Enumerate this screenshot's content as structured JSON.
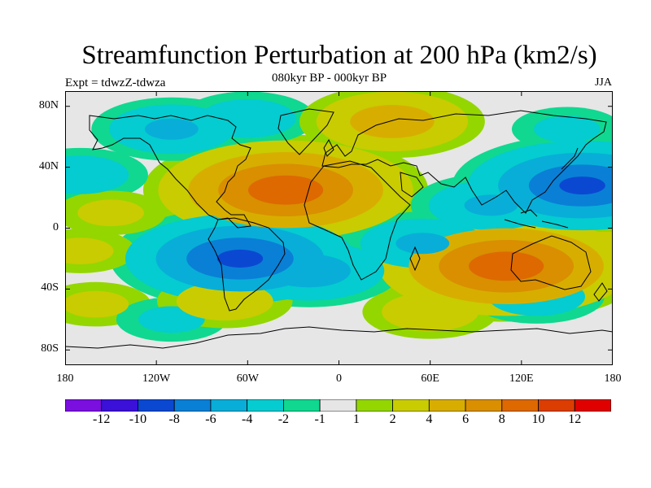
{
  "title": "Streamfunction Perturbation at 200 hPa (km2/s)",
  "subtitle": "080kyr BP - 000kyr BP",
  "experiment": "Expt = tdwzZ-tdwza",
  "season": "JJA",
  "map": {
    "projection": "cylindrical-equidistant",
    "lon_range": [
      -180,
      180
    ],
    "lat_range": [
      -90,
      90
    ],
    "fill_style": "filled-contours",
    "coastlines": true
  },
  "y_ticks": [
    {
      "label": "80N",
      "lat": 80
    },
    {
      "label": "40N",
      "lat": 40
    },
    {
      "label": "0",
      "lat": 0
    },
    {
      "label": "40S",
      "lat": -40
    },
    {
      "label": "80S",
      "lat": -80
    }
  ],
  "x_ticks": [
    {
      "label": "180",
      "lon": -180
    },
    {
      "label": "120W",
      "lon": -120
    },
    {
      "label": "60W",
      "lon": -60
    },
    {
      "label": "0",
      "lon": 0
    },
    {
      "label": "60E",
      "lon": 60
    },
    {
      "label": "120E",
      "lon": 120
    },
    {
      "label": "180",
      "lon": 180
    }
  ],
  "colorbar": {
    "colors": [
      "#7a0fe0",
      "#3b10d8",
      "#0a48d2",
      "#0a7fd6",
      "#08aed8",
      "#04ccd0",
      "#10d890",
      "#e6e6e6",
      "#94d600",
      "#c9cc00",
      "#d7ae00",
      "#d98f00",
      "#dd6900",
      "#dc3d00",
      "#e00000"
    ],
    "labels": [
      "-12",
      "-10",
      "-8",
      "-6",
      "-4",
      "-2",
      "-1",
      "1",
      "2",
      "4",
      "6",
      "8",
      "10",
      "12"
    ]
  },
  "chart_data": {
    "type": "heatmap",
    "variable": "Streamfunction Perturbation at 200 hPa",
    "units": "km2/s",
    "levels": [
      -12,
      -10,
      -8,
      -6,
      -4,
      -2,
      -1,
      1,
      2,
      4,
      6,
      8,
      10,
      12
    ],
    "centers": [
      {
        "lon": -35,
        "lat": 25,
        "value": 9
      },
      {
        "lon": 110,
        "lat": -25,
        "value": 9
      },
      {
        "lon": 160,
        "lat": 28,
        "value": -8
      },
      {
        "lon": -65,
        "lat": -20,
        "value": -8
      },
      {
        "lon": -20,
        "lat": -28,
        "value": -5
      },
      {
        "lon": 55,
        "lat": -10,
        "value": -4
      },
      {
        "lon": 100,
        "lat": 15,
        "value": -4
      },
      {
        "lon": -110,
        "lat": 65,
        "value": -4
      },
      {
        "lon": -60,
        "lat": 72,
        "value": -3
      },
      {
        "lon": 150,
        "lat": 65,
        "value": -2
      },
      {
        "lon": 35,
        "lat": 70,
        "value": 5
      },
      {
        "lon": -170,
        "lat": 35,
        "value": -3
      },
      {
        "lon": 60,
        "lat": -55,
        "value": 3
      },
      {
        "lon": -160,
        "lat": -50,
        "value": 2
      },
      {
        "lon": 175,
        "lat": -15,
        "value": 3
      },
      {
        "lon": -110,
        "lat": -60,
        "value": -2
      },
      {
        "lon": -75,
        "lat": -48,
        "value": 3
      },
      {
        "lon": -150,
        "lat": 10,
        "value": 2
      },
      {
        "lon": 130,
        "lat": -45,
        "value": -3
      },
      {
        "lon": -170,
        "lat": -15,
        "value": 2
      }
    ]
  }
}
